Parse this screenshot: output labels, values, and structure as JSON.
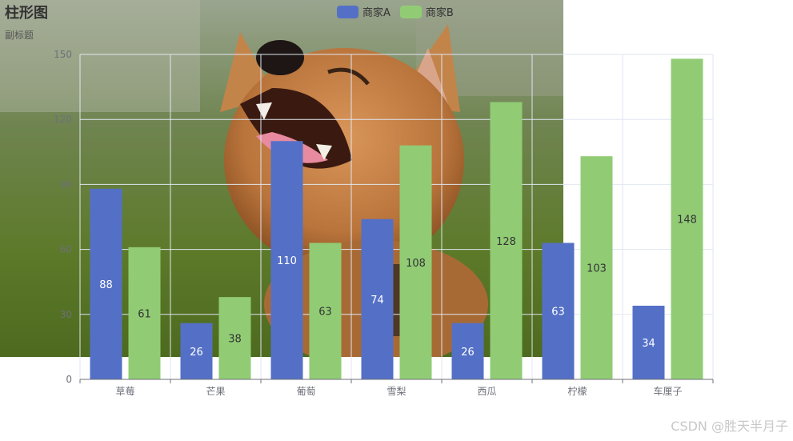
{
  "chart_data": {
    "type": "bar",
    "title": "柱形图",
    "subtitle": "副标题",
    "categories": [
      "草莓",
      "芒果",
      "葡萄",
      "雪梨",
      "西瓜",
      "柠檬",
      "车厘子"
    ],
    "series": [
      {
        "name": "商家A",
        "color": "#5470c6",
        "values": [
          88,
          26,
          110,
          74,
          26,
          63,
          34
        ]
      },
      {
        "name": "商家B",
        "color": "#91cc75",
        "values": [
          61,
          38,
          63,
          108,
          128,
          103,
          148
        ]
      }
    ],
    "yticks": [
      "0",
      "30",
      "60",
      "90",
      "120",
      "150"
    ],
    "ylim": [
      0,
      150
    ],
    "grid": true,
    "legend": "top-center"
  },
  "background": {
    "icon": "dog-photo"
  },
  "watermark": "CSDN @胜天半月子"
}
